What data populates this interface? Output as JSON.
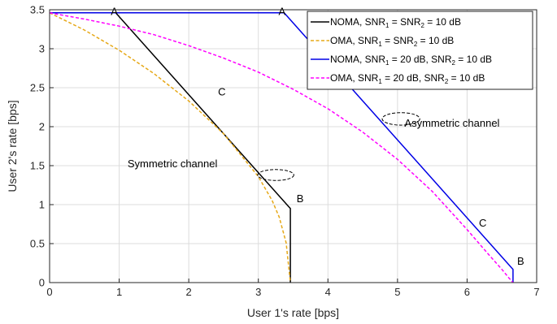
{
  "chart_data": {
    "type": "line",
    "xlabel": "User 1's rate [bps]",
    "ylabel": "User 2's rate [bps]",
    "xlim": [
      0,
      7
    ],
    "ylim": [
      0,
      3.5
    ],
    "xticks": [
      "0",
      "1",
      "2",
      "3",
      "4",
      "5",
      "6",
      "7"
    ],
    "yticks": [
      "0",
      "0.5",
      "1",
      "1.5",
      "2",
      "2.5",
      "3",
      "3.5"
    ],
    "grid": true,
    "legend_position": "top-right",
    "series": [
      {
        "name": "NOMA, SNR1 = SNR2 = 10 dB",
        "legend": {
          "pre": "NOMA, SNR",
          "s1": "1",
          "mid": " = SNR",
          "s2": "2",
          "post": " = 10 dB"
        },
        "color": "#000000",
        "style": "solid",
        "x": [
          0,
          0.95,
          3.46,
          3.46
        ],
        "y": [
          3.46,
          3.46,
          0.95,
          0
        ]
      },
      {
        "name": "OMA, SNR1 = SNR2 = 10 dB",
        "legend": {
          "pre": "OMA, SNR",
          "s1": "1",
          "mid": " = SNR",
          "s2": "2",
          "post": " = 10 dB"
        },
        "color": "#E6A817",
        "style": "dashed",
        "x": [
          0,
          0.5,
          1.0,
          1.5,
          2.0,
          2.5,
          3.0,
          3.2,
          3.3,
          3.4,
          3.46
        ],
        "y": [
          3.46,
          3.24,
          2.98,
          2.68,
          2.33,
          1.91,
          1.36,
          1.05,
          0.84,
          0.51,
          0
        ]
      },
      {
        "name": "NOMA, SNR1 = 20 dB, SNR2 = 10 dB",
        "legend": {
          "pre": "NOMA, SNR",
          "s1": "1",
          "mid": " = 20 dB, SNR",
          "s2": "2",
          "post": " = 10 dB"
        },
        "color": "#0000E6",
        "style": "solid",
        "x": [
          0,
          3.37,
          6.66,
          6.66
        ],
        "y": [
          3.46,
          3.46,
          0.17,
          0
        ]
      },
      {
        "name": "OMA, SNR1 = 20 dB, SNR2 = 10 dB",
        "legend": {
          "pre": "OMA, SNR",
          "s1": "1",
          "mid": " = 20 dB, SNR",
          "s2": "2",
          "post": " = 10 dB"
        },
        "color": "#FF00FF",
        "style": "dashed",
        "x": [
          0,
          0.5,
          1,
          1.5,
          2,
          2.5,
          3,
          3.5,
          4,
          4.5,
          5,
          5.5,
          6,
          6.3,
          6.5,
          6.6,
          6.66
        ],
        "y": [
          3.46,
          3.38,
          3.29,
          3.18,
          3.04,
          2.88,
          2.7,
          2.48,
          2.23,
          1.93,
          1.58,
          1.17,
          0.68,
          0.37,
          0.17,
          0.06,
          0
        ]
      }
    ],
    "annotations": [
      {
        "text": "A",
        "x": 0.88,
        "y": 3.43
      },
      {
        "text": "C",
        "x": 2.42,
        "y": 2.4
      },
      {
        "text": "B",
        "x": 3.55,
        "y": 1.03
      },
      {
        "text": "A",
        "x": 3.29,
        "y": 3.43
      },
      {
        "text": "C",
        "x": 6.17,
        "y": 0.72
      },
      {
        "text": "B",
        "x": 6.72,
        "y": 0.23
      },
      {
        "text": "Symmetric channel",
        "x": 1.12,
        "y": 1.48
      },
      {
        "text": "Asymmetric channel",
        "x": 5.1,
        "y": 2.0
      }
    ],
    "ellipses": [
      {
        "cx": 3.25,
        "cy": 1.38,
        "rx": 0.26,
        "ry": 0.07
      },
      {
        "cx": 5.05,
        "cy": 2.1,
        "rx": 0.27,
        "ry": 0.08
      }
    ]
  }
}
